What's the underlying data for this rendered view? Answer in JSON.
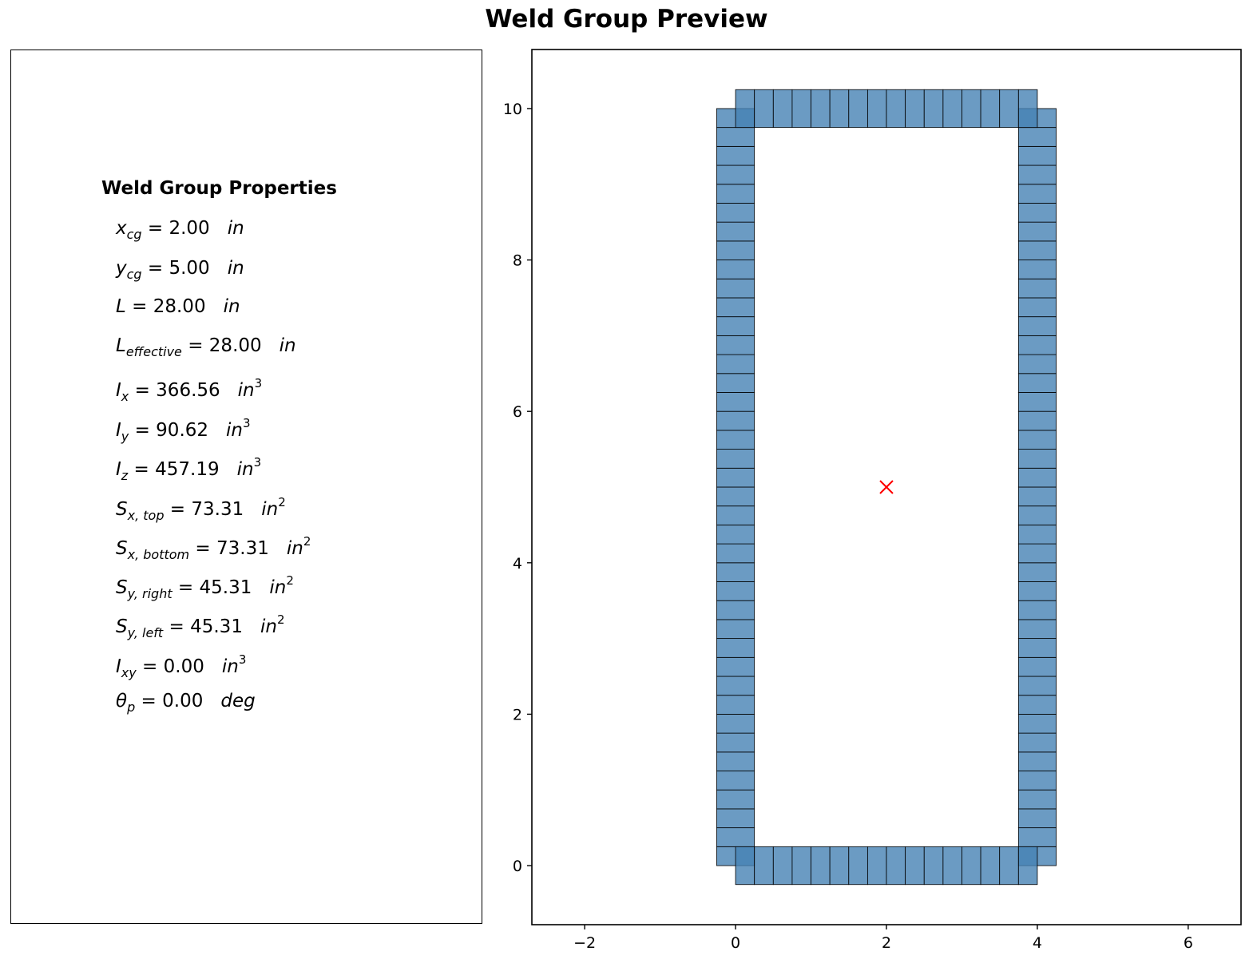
{
  "title": "Weld Group Preview",
  "properties": {
    "heading": "Weld Group Properties",
    "rows": [
      {
        "sym": "x",
        "sub": "cg",
        "value": "2.00",
        "unit": "in",
        "exp": ""
      },
      {
        "sym": "y",
        "sub": "cg",
        "value": "5.00",
        "unit": "in",
        "exp": ""
      },
      {
        "sym": "L",
        "sub": "",
        "value": "28.00",
        "unit": "in",
        "exp": ""
      },
      {
        "sym": "L",
        "sub": "effective",
        "value": "28.00",
        "unit": "in",
        "exp": ""
      },
      {
        "sym": "I",
        "sub": "x",
        "value": "366.56",
        "unit": "in",
        "exp": "3"
      },
      {
        "sym": "I",
        "sub": "y",
        "value": "90.62",
        "unit": "in",
        "exp": "3"
      },
      {
        "sym": "I",
        "sub": "z",
        "value": "457.19",
        "unit": "in",
        "exp": "3"
      },
      {
        "sym": "S",
        "sub": "x, top",
        "value": "73.31",
        "unit": "in",
        "exp": "2"
      },
      {
        "sym": "S",
        "sub": "x, bottom",
        "value": "73.31",
        "unit": "in",
        "exp": "2"
      },
      {
        "sym": "S",
        "sub": "y, right",
        "value": "45.31",
        "unit": "in",
        "exp": "2"
      },
      {
        "sym": "S",
        "sub": "y, left",
        "value": "45.31",
        "unit": "in",
        "exp": "2"
      },
      {
        "sym": "I",
        "sub": "xy",
        "value": "0.00",
        "unit": "in",
        "exp": "3"
      },
      {
        "sym": "θ",
        "sub": "p",
        "value": "0.00",
        "unit": "deg",
        "exp": ""
      }
    ]
  },
  "chart_data": {
    "type": "scatter",
    "title": "",
    "xlabel": "",
    "ylabel": "",
    "xlim": [
      -2.7,
      6.7
    ],
    "ylim": [
      -0.78,
      10.78
    ],
    "xticks": [
      -2,
      0,
      2,
      4,
      6
    ],
    "yticks": [
      0,
      2,
      4,
      6,
      8,
      10
    ],
    "tick_labels_x": [
      "−2",
      "0",
      "2",
      "4",
      "6"
    ],
    "tick_labels_y": [
      "0",
      "2",
      "4",
      "6",
      "8",
      "10"
    ],
    "grid": false,
    "weld_segments": [
      {
        "name": "left",
        "x": [
          0,
          0
        ],
        "y": [
          0,
          10
        ],
        "thickness": 0.5,
        "elements": 40
      },
      {
        "name": "right",
        "x": [
          4,
          4
        ],
        "y": [
          0,
          10
        ],
        "thickness": 0.5,
        "elements": 40
      },
      {
        "name": "top",
        "x": [
          0,
          4
        ],
        "y": [
          10,
          10
        ],
        "thickness": 0.5,
        "elements": 16
      },
      {
        "name": "bottom",
        "x": [
          0,
          4
        ],
        "y": [
          0,
          0
        ],
        "thickness": 0.5,
        "elements": 16
      }
    ],
    "centroid": {
      "x": 2.0,
      "y": 5.0,
      "marker": "x"
    },
    "colors": {
      "weld_fill": "#4682b4",
      "weld_alpha": 0.8,
      "weld_edge": "#000000",
      "centroid": "#ff0000"
    }
  }
}
